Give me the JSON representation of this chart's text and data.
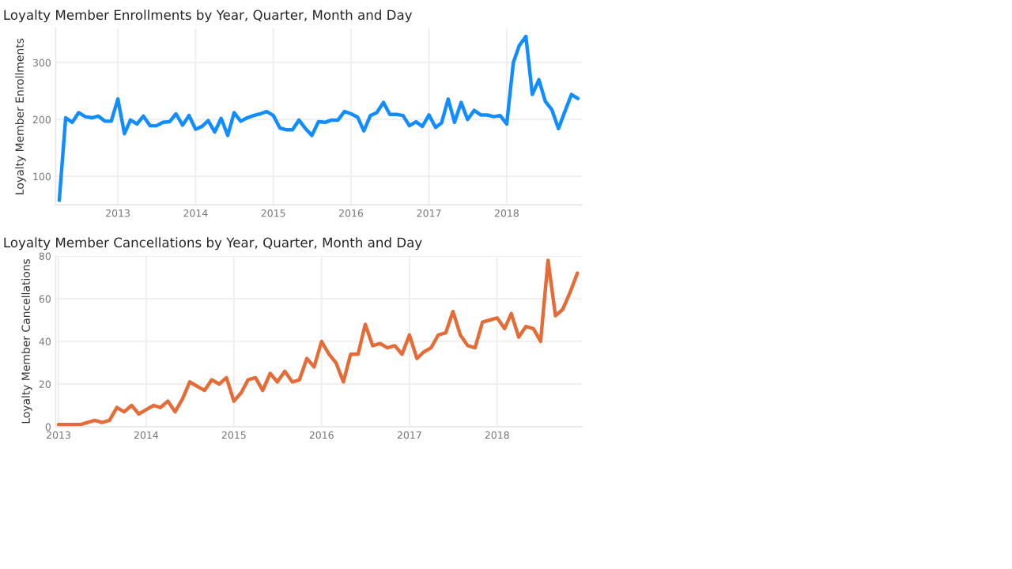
{
  "chart_data": [
    {
      "type": "line",
      "title": "Loyalty Member Enrollments by Year, Quarter, Month and Day",
      "ylabel": "Loyalty Member Enrollments",
      "x": [
        "2012-04",
        "2012-05",
        "2012-06",
        "2012-07",
        "2012-08",
        "2012-09",
        "2012-10",
        "2012-11",
        "2012-12",
        "2013-01",
        "2013-02",
        "2013-03",
        "2013-04",
        "2013-05",
        "2013-06",
        "2013-07",
        "2013-08",
        "2013-09",
        "2013-10",
        "2013-11",
        "2013-12",
        "2014-01",
        "2014-02",
        "2014-03",
        "2014-04",
        "2014-05",
        "2014-06",
        "2014-07",
        "2014-08",
        "2014-09",
        "2014-10",
        "2014-11",
        "2014-12",
        "2015-01",
        "2015-02",
        "2015-03",
        "2015-04",
        "2015-05",
        "2015-06",
        "2015-07",
        "2015-08",
        "2015-09",
        "2015-10",
        "2015-11",
        "2015-12",
        "2016-01",
        "2016-02",
        "2016-03",
        "2016-04",
        "2016-05",
        "2016-06",
        "2016-07",
        "2016-08",
        "2016-09",
        "2016-10",
        "2016-11",
        "2016-12",
        "2017-01",
        "2017-02",
        "2017-03",
        "2017-04",
        "2017-05",
        "2017-06",
        "2017-07",
        "2017-08",
        "2017-09",
        "2017-10",
        "2017-11",
        "2017-12",
        "2018-01",
        "2018-02",
        "2018-03",
        "2018-04",
        "2018-05",
        "2018-06",
        "2018-07",
        "2018-08",
        "2018-09",
        "2018-10",
        "2018-11",
        "2018-12"
      ],
      "series": [
        {
          "color": "#118dff",
          "values": [
            58,
            203,
            195,
            212,
            205,
            203,
            206,
            197,
            197,
            236,
            175,
            199,
            192,
            206,
            189,
            189,
            195,
            196,
            210,
            190,
            207,
            183,
            188,
            198,
            178,
            202,
            172,
            212,
            197,
            203,
            207,
            210,
            214,
            207,
            185,
            182,
            182,
            199,
            184,
            172,
            196,
            195,
            199,
            199,
            214,
            210,
            204,
            180,
            207,
            212,
            230,
            209,
            209,
            207,
            189,
            196,
            188,
            208,
            186,
            194,
            236,
            195,
            230,
            200,
            216,
            208,
            208,
            205,
            207,
            192,
            300,
            330,
            346,
            244,
            270,
            232,
            217,
            184,
            214,
            244,
            237
          ]
        }
      ],
      "xlim": [
        "2012-03-15",
        "2018-12-20"
      ],
      "xticks": [
        "2013",
        "2014",
        "2015",
        "2016",
        "2017",
        "2018"
      ],
      "ylim": [
        50,
        360
      ],
      "yticks": [
        100,
        200,
        300
      ],
      "grid": true
    },
    {
      "type": "line",
      "title": "Loyalty Member Cancellations by Year, Quarter, Month and Day",
      "ylabel": "Loyalty Member Cancellations",
      "x": [
        "2013-01",
        "2013-02",
        "2013-03",
        "2013-04",
        "2013-05",
        "2013-06",
        "2013-07",
        "2013-08",
        "2013-09",
        "2013-10",
        "2013-11",
        "2013-12",
        "2014-01",
        "2014-02",
        "2014-03",
        "2014-04",
        "2014-05",
        "2014-06",
        "2014-07",
        "2014-08",
        "2014-09",
        "2014-10",
        "2014-11",
        "2014-12",
        "2015-01",
        "2015-02",
        "2015-03",
        "2015-04",
        "2015-05",
        "2015-06",
        "2015-07",
        "2015-08",
        "2015-09",
        "2015-10",
        "2015-11",
        "2015-12",
        "2016-01",
        "2016-02",
        "2016-03",
        "2016-04",
        "2016-05",
        "2016-06",
        "2016-07",
        "2016-08",
        "2016-09",
        "2016-10",
        "2016-11",
        "2016-12",
        "2017-01",
        "2017-02",
        "2017-03",
        "2017-04",
        "2017-05",
        "2017-06",
        "2017-07",
        "2017-08",
        "2017-09",
        "2017-10",
        "2017-11",
        "2017-12",
        "2018-01",
        "2018-02",
        "2018-03",
        "2018-04",
        "2018-05",
        "2018-06",
        "2018-07",
        "2018-08",
        "2018-09",
        "2018-10",
        "2018-11",
        "2018-12"
      ],
      "series": [
        {
          "color": "#e66c37",
          "values": [
            1,
            1,
            1,
            1,
            2,
            3,
            2,
            3,
            9,
            7,
            10,
            6,
            8,
            10,
            9,
            12,
            7,
            13,
            21,
            19,
            17,
            22,
            20,
            23,
            12,
            16,
            22,
            23,
            17,
            25,
            21,
            26,
            21,
            22,
            32,
            28,
            40,
            34,
            30,
            21,
            34,
            34,
            48,
            38,
            39,
            37,
            38,
            34,
            43,
            32,
            35,
            37,
            43,
            44,
            54,
            43,
            38,
            37,
            49,
            50,
            51,
            46,
            53,
            42,
            47,
            46,
            40,
            78,
            52,
            55,
            63,
            72
          ]
        }
      ],
      "xlim": [
        "2012-12-20",
        "2018-12-20"
      ],
      "xticks": [
        "2013",
        "2014",
        "2015",
        "2016",
        "2017",
        "2018"
      ],
      "ylim": [
        0,
        80
      ],
      "yticks": [
        0,
        20,
        40,
        60,
        80
      ],
      "grid": true
    }
  ]
}
